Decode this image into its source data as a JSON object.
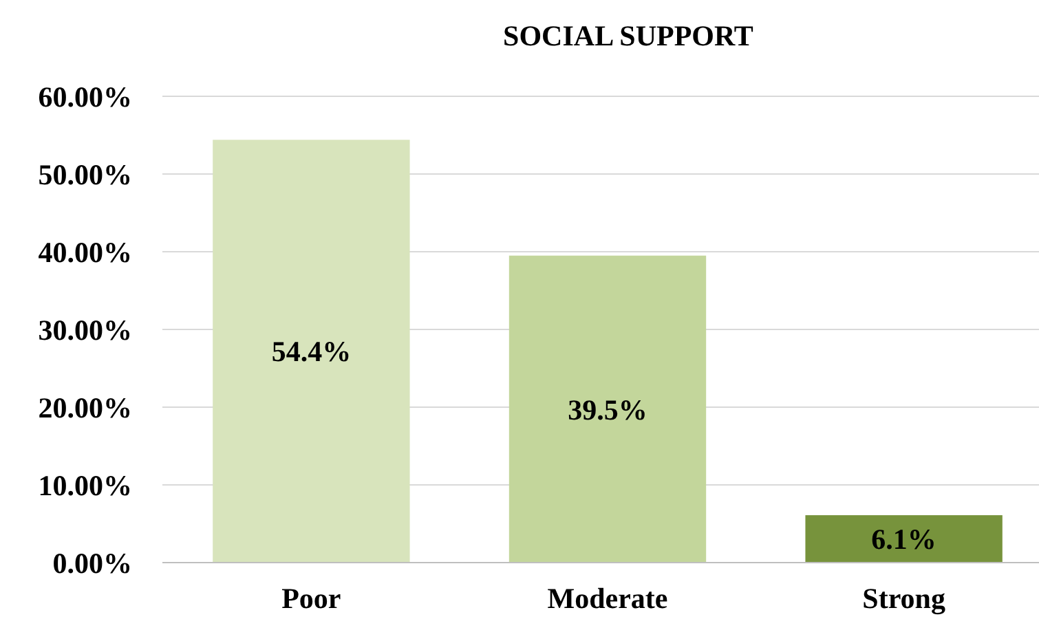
{
  "chart_data": {
    "type": "bar",
    "title": "SOCIAL SUPPORT",
    "categories": [
      "Poor",
      "Moderate",
      "Strong"
    ],
    "values": [
      54.4,
      39.5,
      6.1
    ],
    "colors": [
      "#d8e4bc",
      "#c3d69b",
      "#77933c"
    ],
    "value_labels": [
      "54.4%",
      "39.5%",
      "6.1%"
    ],
    "ylim": [
      0,
      60
    ],
    "yticks": [
      {
        "value": 0,
        "label": "0.00%"
      },
      {
        "value": 10,
        "label": "10.00%"
      },
      {
        "value": 20,
        "label": "20.00%"
      },
      {
        "value": 30,
        "label": "30.00%"
      },
      {
        "value": 40,
        "label": "40.00%"
      },
      {
        "value": 50,
        "label": "50.00%"
      },
      {
        "value": 60,
        "label": "60.00%"
      }
    ],
    "grid": true
  }
}
